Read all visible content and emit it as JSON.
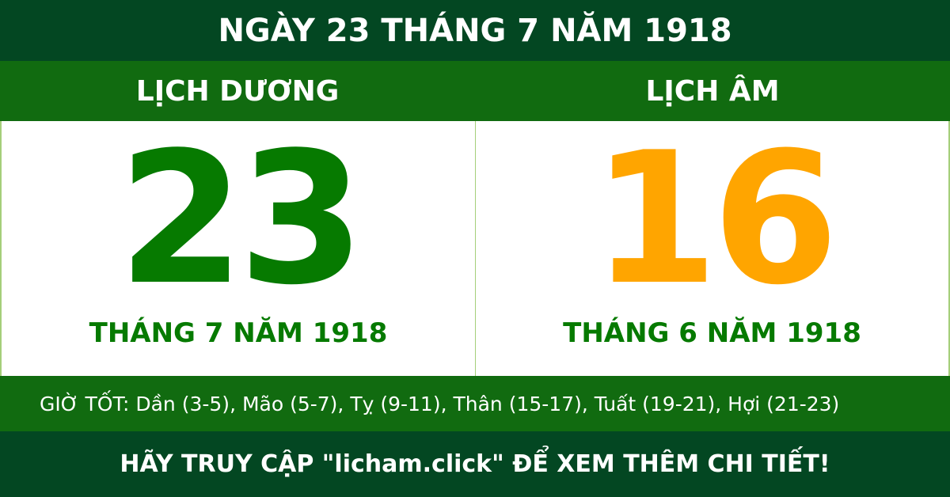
{
  "title": "NGÀY 23 THÁNG 7 NĂM 1918",
  "solar": {
    "label": "LỊCH DƯƠNG",
    "day": "23",
    "month_year": "THÁNG 7 NĂM 1918",
    "color": "#067a00"
  },
  "lunar": {
    "label": "LỊCH ÂM",
    "day": "16",
    "month_year": "THÁNG 6 NĂM 1918",
    "color": "#ffa500"
  },
  "good_hours": "GIỜ TỐT: Dần (3-5), Mão (5-7), Tỵ (9-11), Thân (15-17), Tuất (19-21), Hợi (21-23)",
  "footer": "HÃY TRUY CẬP \"licham.click\" ĐỂ XEM THÊM CHI TIẾT!",
  "colors": {
    "dark_green": "#034722",
    "green": "#116b10"
  }
}
